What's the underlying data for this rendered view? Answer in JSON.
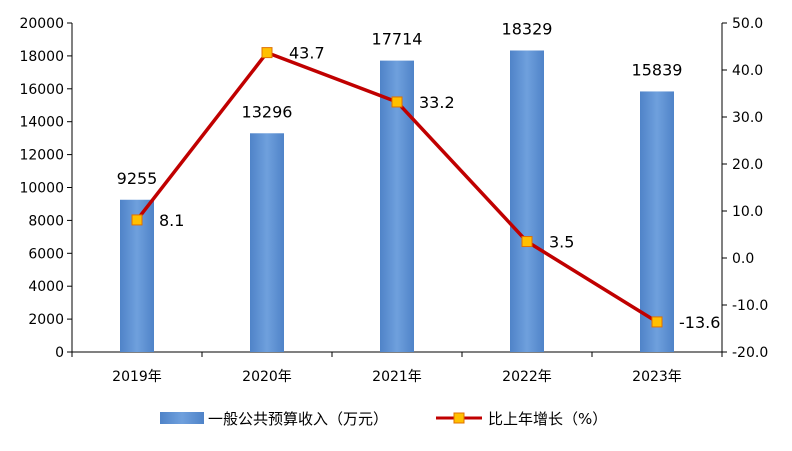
{
  "chart_data": {
    "type": "bar+line",
    "categories": [
      "2019年",
      "2020年",
      "2021年",
      "2022年",
      "2023年"
    ],
    "series": [
      {
        "name": "一般公共预算收入（万元）",
        "type": "bar",
        "axis": "left",
        "values": [
          9255,
          13296,
          17714,
          18329,
          15839
        ],
        "color": "#5b8fd4"
      },
      {
        "name": "比上年增长（%）",
        "type": "line",
        "axis": "right",
        "values": [
          8.1,
          43.7,
          33.2,
          3.5,
          -13.6
        ],
        "color": "#c00000",
        "marker_color": "#ffc000"
      }
    ],
    "y_left": {
      "range": [
        0,
        20000
      ],
      "ticks": [
        "0",
        "2000",
        "4000",
        "6000",
        "8000",
        "10000",
        "12000",
        "14000",
        "16000",
        "18000",
        "20000"
      ]
    },
    "y_right": {
      "range": [
        -20,
        50
      ],
      "ticks": [
        "-20.0",
        "-10.0",
        "0.0",
        "10.0",
        "20.0",
        "30.0",
        "40.0",
        "50.0"
      ]
    },
    "bar_labels": [
      "9255",
      "13296",
      "17714",
      "18329",
      "15839"
    ],
    "line_labels": [
      "8.1",
      "43.7",
      "33.2",
      "3.5",
      "-13.6"
    ],
    "grid": false,
    "legend_position": "bottom"
  }
}
